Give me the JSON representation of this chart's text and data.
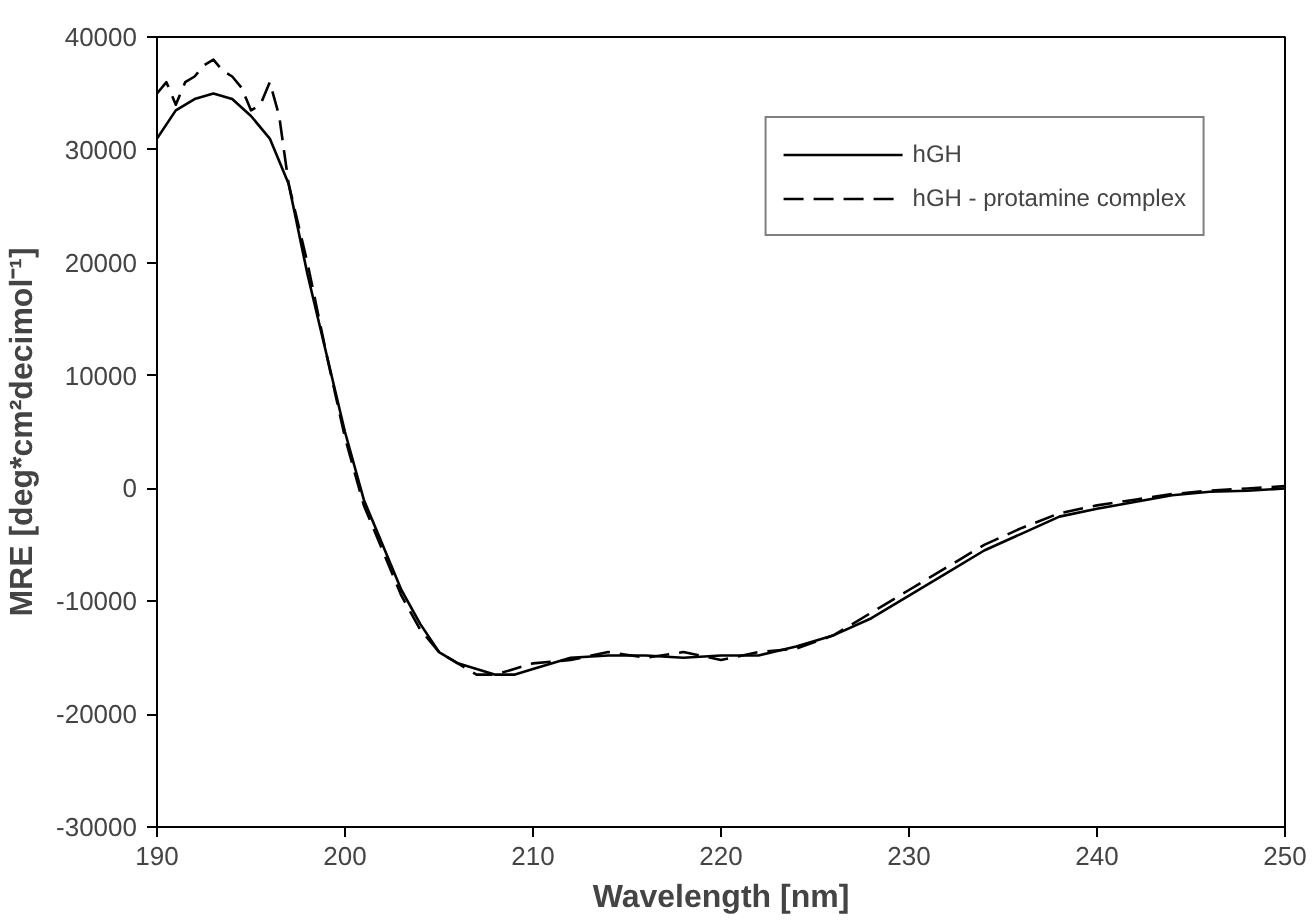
{
  "chart_data": {
    "type": "line",
    "xlabel": "Wavelength [nm]",
    "ylabel": "MRE [deg*cm²decimol⁻¹]",
    "xlim": [
      190,
      250
    ],
    "xticks": [
      190,
      200,
      210,
      220,
      230,
      240,
      250
    ],
    "ylim": [
      -30000,
      40000
    ],
    "yticks": [
      -30000,
      -20000,
      -10000,
      0,
      10000,
      20000,
      30000,
      40000
    ],
    "grid": false,
    "legend": "top right",
    "marker": "none",
    "series": [
      {
        "name": "hGH",
        "color": "#000000",
        "line_style": "solid",
        "x": [
          190,
          191,
          192,
          193,
          194,
          195,
          196,
          197,
          198,
          199,
          200,
          201,
          202,
          203,
          204,
          205,
          206,
          207,
          208,
          209,
          210,
          212,
          214,
          216,
          218,
          220,
          222,
          224,
          226,
          228,
          230,
          232,
          234,
          236,
          238,
          240,
          242,
          244,
          246,
          248,
          250
        ],
        "values": [
          31000,
          33500,
          34500,
          35000,
          34500,
          33000,
          31000,
          27000,
          19000,
          12000,
          5000,
          -1000,
          -5000,
          -9000,
          -12000,
          -14500,
          -15500,
          -16000,
          -16500,
          -16500,
          -16000,
          -15000,
          -14800,
          -14800,
          -15000,
          -14800,
          -14800,
          -14000,
          -13000,
          -11500,
          -9500,
          -7500,
          -5500,
          -4000,
          -2500,
          -1800,
          -1200,
          -600,
          -300,
          -200,
          0
        ]
      },
      {
        "name": "hGH - protamine complex",
        "color": "#000000",
        "line_style": "dashed",
        "x": [
          190,
          190.5,
          191,
          191.5,
          192,
          192.5,
          193,
          193.5,
          194,
          194.5,
          195,
          195.5,
          196,
          196.5,
          197,
          198,
          199,
          200,
          201,
          202,
          203,
          204,
          205,
          206,
          207,
          208,
          209,
          210,
          212,
          214,
          216,
          218,
          220,
          222,
          224,
          226,
          228,
          230,
          232,
          234,
          236,
          238,
          240,
          242,
          244,
          246,
          248,
          250
        ],
        "values": [
          35000,
          36000,
          34000,
          36000,
          36500,
          37500,
          38000,
          37000,
          36500,
          35500,
          33500,
          34000,
          36000,
          33000,
          27000,
          20000,
          12000,
          4500,
          -1500,
          -5500,
          -9500,
          -12500,
          -14500,
          -15500,
          -16500,
          -16500,
          -16000,
          -15500,
          -15200,
          -14500,
          -15000,
          -14500,
          -15200,
          -14500,
          -14200,
          -13000,
          -11000,
          -9000,
          -7000,
          -5000,
          -3500,
          -2200,
          -1500,
          -1000,
          -500,
          -200,
          0,
          200
        ]
      }
    ]
  }
}
